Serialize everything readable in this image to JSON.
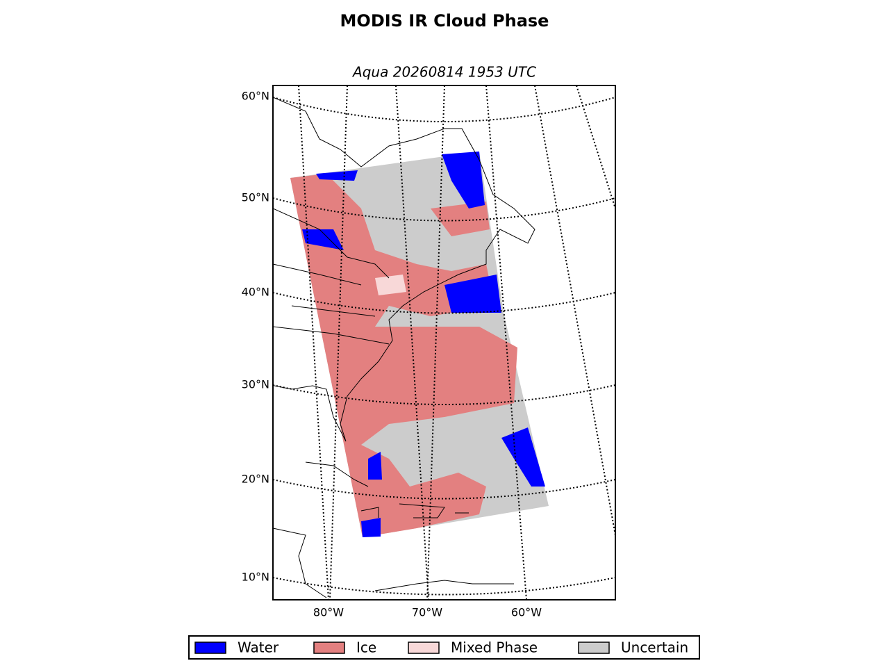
{
  "title": "MODIS IR Cloud Phase",
  "subtitle": "Aqua 20260814 1953 UTC",
  "map": {
    "lat_labels": [
      "60°N",
      "50°N",
      "40°N",
      "30°N",
      "20°N",
      "10°N"
    ],
    "lon_labels": [
      "80°W",
      "70°W",
      "60°W"
    ]
  },
  "legend": [
    {
      "label": "Water",
      "color": "#0000ff"
    },
    {
      "label": "Ice",
      "color": "#e38080"
    },
    {
      "label": "Mixed Phase",
      "color": "#f8d8d8"
    },
    {
      "label": "Uncertain",
      "color": "#cccccc"
    }
  ]
}
